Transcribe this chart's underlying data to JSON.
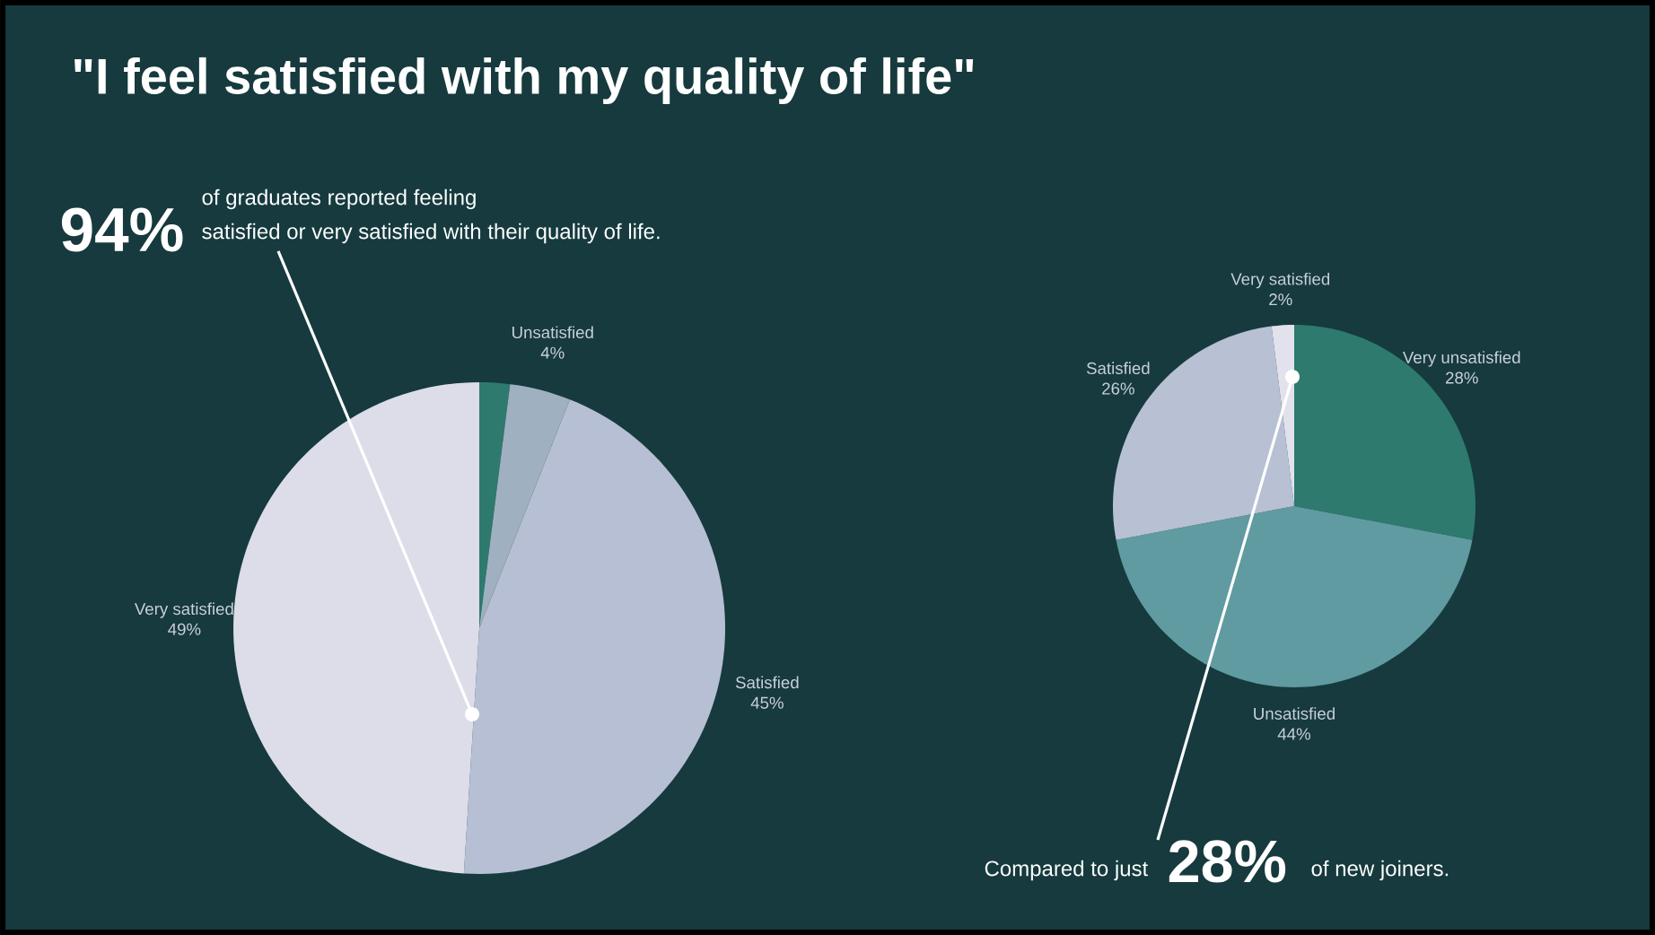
{
  "chart_data": [
    {
      "type": "pie",
      "title": "\"I feel satisfied with my quality of life\"",
      "categories": [
        null,
        "Unsatisfied",
        "Satisfied",
        "Very satisfied"
      ],
      "values": [
        2,
        4,
        45,
        49
      ],
      "value_labels": [
        null,
        "4%",
        "45%",
        "49%"
      ],
      "colors": [
        "#2e7a6e",
        "#9fb1c1",
        "#b6bfd3",
        "#dcdde9"
      ],
      "annotations": [
        "94%",
        "of graduates reported feeling",
        "satisfied or very satisfied with their quality of life."
      ]
    },
    {
      "type": "pie",
      "categories": [
        "Very unsatisfied",
        "Unsatisfied",
        "Satisfied",
        "Very satisfied"
      ],
      "values": [
        28,
        44,
        26,
        2
      ],
      "value_labels": [
        "28%",
        "44%",
        "26%",
        "2%"
      ],
      "colors": [
        "#2e7a6e",
        "#5f9ba0",
        "#b8c0d4",
        "#e2e2ec"
      ],
      "annotations": [
        "Compared to just",
        "28%",
        "of new joiners."
      ]
    }
  ]
}
